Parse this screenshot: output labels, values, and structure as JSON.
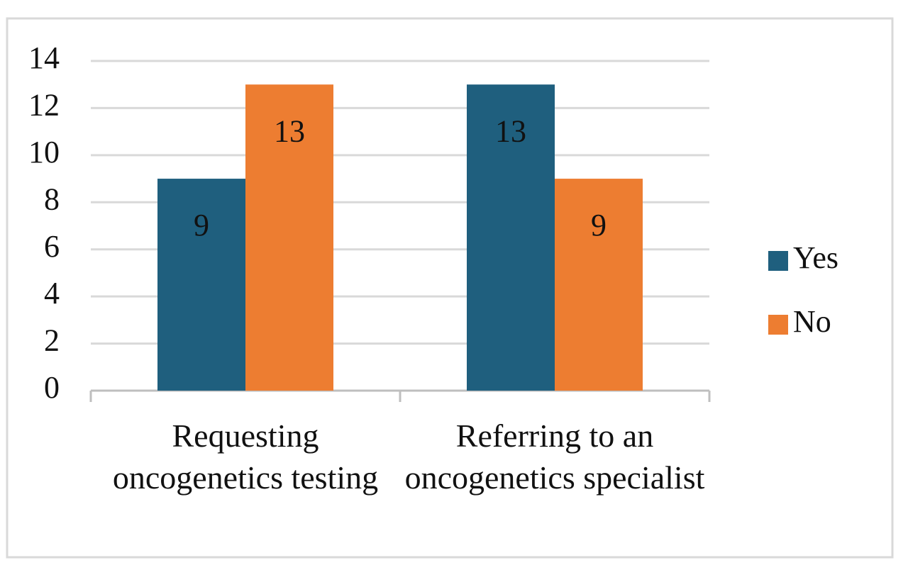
{
  "chart_data": {
    "type": "bar",
    "categories": [
      "Requesting oncogenetics testing",
      "Referring to an oncogenetics specialist"
    ],
    "series": [
      {
        "name": "Yes",
        "color": "#1f5f7e",
        "values": [
          9,
          13
        ]
      },
      {
        "name": "No",
        "color": "#ed7d31",
        "values": [
          13,
          9
        ]
      }
    ],
    "ylim": [
      0,
      14
    ],
    "yticks": [
      0,
      2,
      4,
      6,
      8,
      10,
      12,
      14
    ],
    "grid": true,
    "legend": "right",
    "data_labels": true
  }
}
